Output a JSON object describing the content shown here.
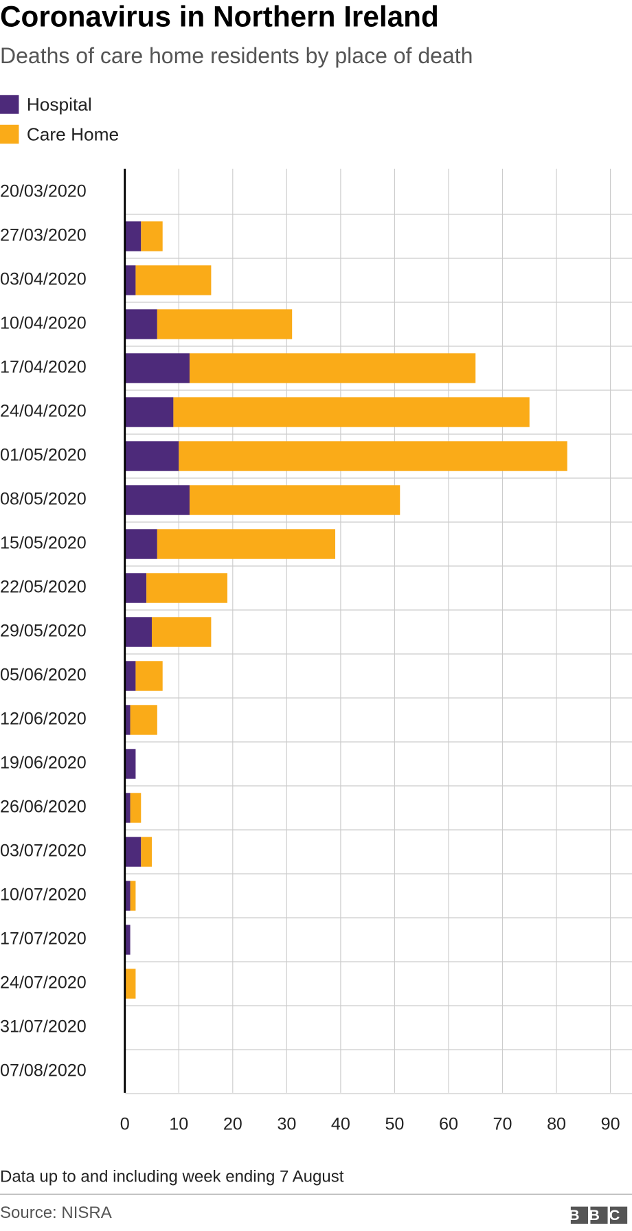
{
  "chart_data": {
    "type": "stacked-bar-horizontal",
    "title": "Coronavirus in Northern Ireland",
    "subtitle": "Deaths of care home residents by place of death",
    "categories": [
      "20/03/2020",
      "27/03/2020",
      "03/04/2020",
      "10/04/2020",
      "17/04/2020",
      "24/04/2020",
      "01/05/2020",
      "08/05/2020",
      "15/05/2020",
      "22/05/2020",
      "29/05/2020",
      "05/06/2020",
      "12/06/2020",
      "19/06/2020",
      "26/06/2020",
      "03/07/2020",
      "10/07/2020",
      "17/07/2020",
      "24/07/2020",
      "31/07/2020",
      "07/08/2020"
    ],
    "series": [
      {
        "name": "Hospital",
        "color": "#4d2a7a",
        "values": [
          0,
          3,
          2,
          6,
          12,
          9,
          10,
          12,
          6,
          4,
          5,
          2,
          1,
          2,
          1,
          3,
          1,
          1,
          0,
          0,
          0
        ]
      },
      {
        "name": "Care Home",
        "color": "#faab18",
        "values": [
          0,
          4,
          14,
          25,
          53,
          66,
          72,
          39,
          33,
          15,
          11,
          5,
          5,
          0,
          2,
          2,
          1,
          0,
          2,
          0,
          0
        ]
      }
    ],
    "xlim": [
      0,
      94
    ],
    "xticks": [
      0,
      10,
      20,
      30,
      40,
      50,
      60,
      70,
      80,
      90
    ],
    "grid": true,
    "note": "Data up to and including week ending 7 August",
    "source": "Source: NISRA",
    "brand": "BBC"
  }
}
